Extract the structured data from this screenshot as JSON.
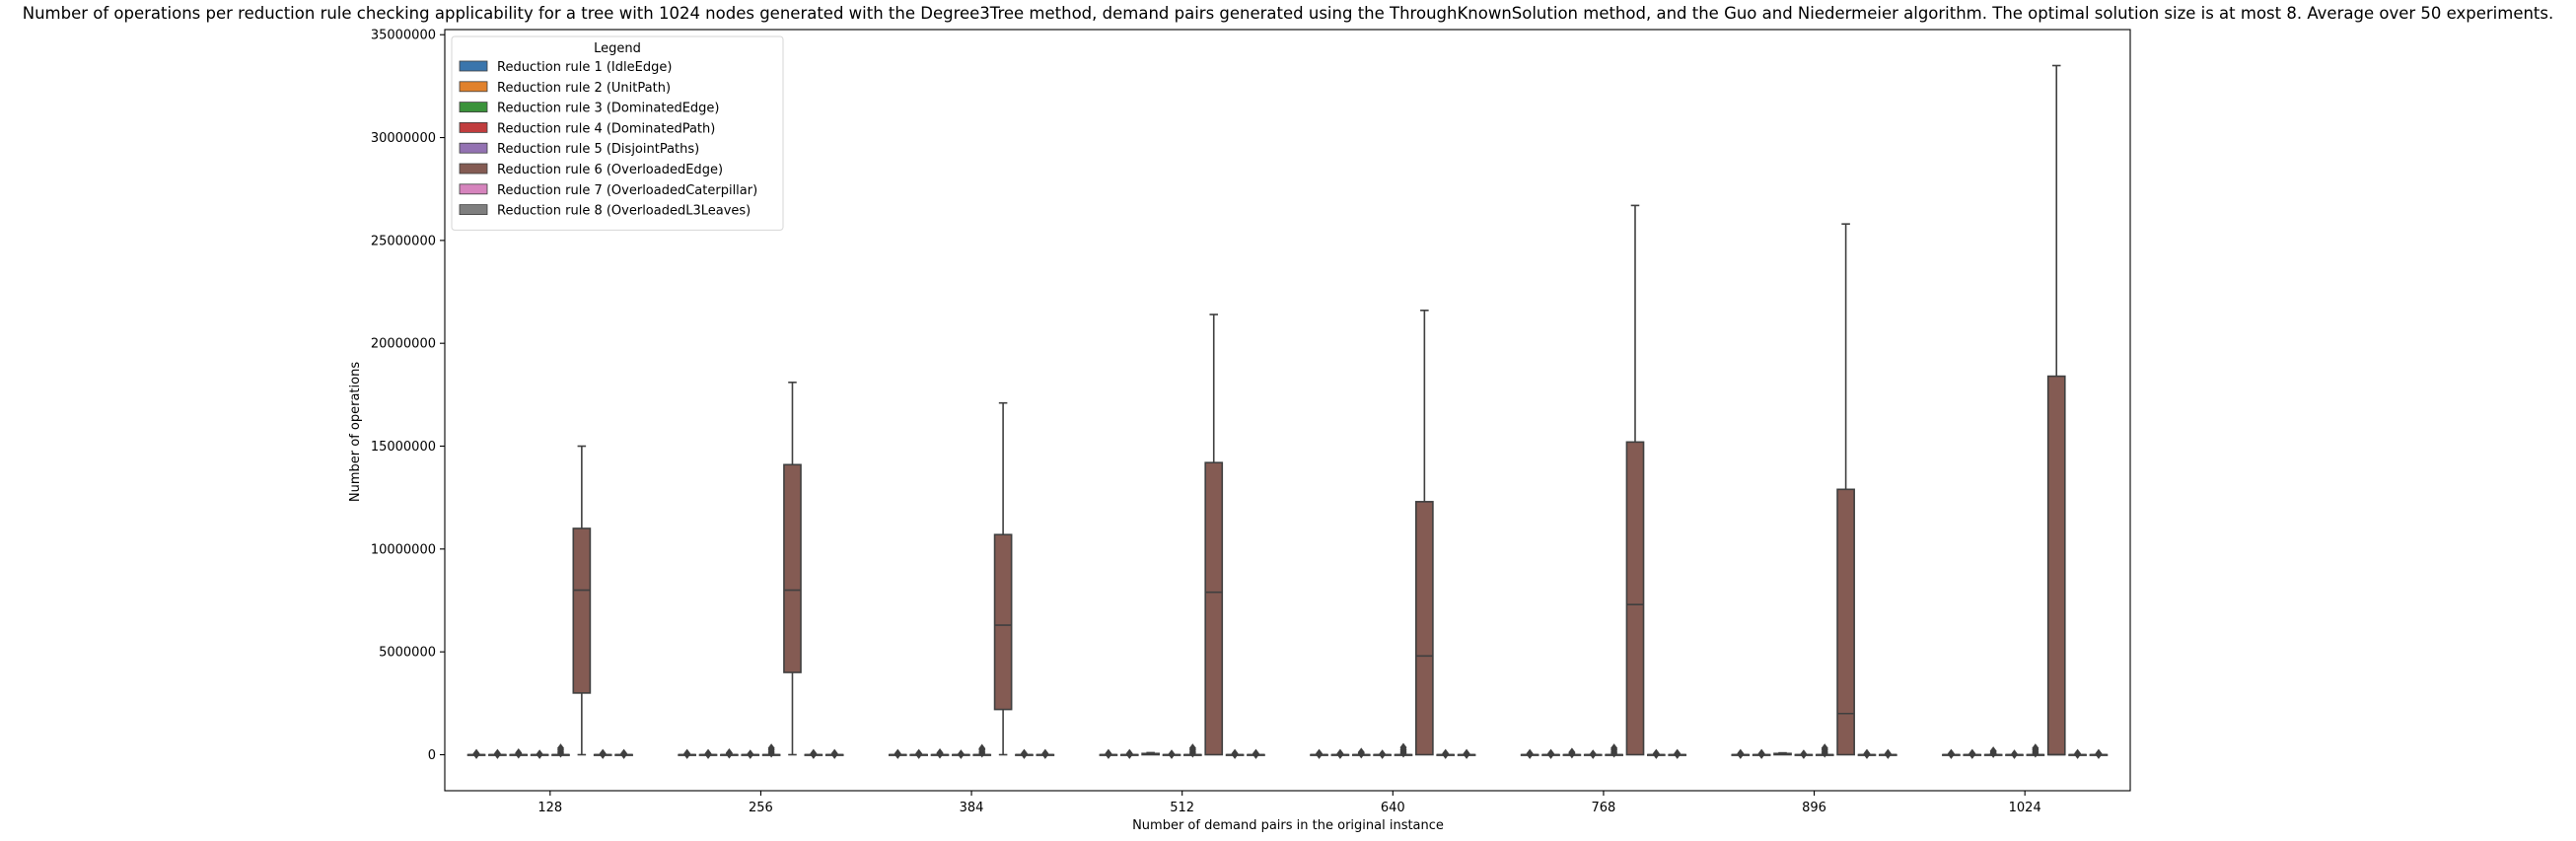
{
  "chart_data": {
    "type": "box",
    "title": "Number of operations per reduction rule checking applicability for a tree with 1024 nodes generated with the Degree3Tree method, demand pairs generated using the ThroughKnownSolution method, and the Guo and Niedermeier algorithm. The optimal solution size is at most 8. Average over 50 experiments.",
    "xlabel": "Number of demand pairs in the original instance",
    "ylabel": "Number of operations",
    "categories": [
      "128",
      "256",
      "384",
      "512",
      "640",
      "768",
      "896",
      "1024"
    ],
    "ylim": [
      -1750000,
      35250000
    ],
    "yticks": [
      0,
      5000000,
      10000000,
      15000000,
      20000000,
      25000000,
      30000000,
      35000000
    ],
    "ytick_labels": [
      "0",
      "5000000",
      "10000000",
      "15000000",
      "20000000",
      "25000000",
      "30000000",
      "35000000"
    ],
    "legend": {
      "title": "Legend",
      "placement": "top-left",
      "entries": [
        {
          "label": "Reduction rule 1 (IdleEdge)",
          "color": "#3a75ac"
        },
        {
          "label": "Reduction rule 2 (UnitPath)",
          "color": "#e1812c"
        },
        {
          "label": "Reduction rule 3 (DominatedEdge)",
          "color": "#3a923a"
        },
        {
          "label": "Reduction rule 4 (DominatedPath)",
          "color": "#c03d3e"
        },
        {
          "label": "Reduction rule 5 (DisjointPaths)",
          "color": "#9372b2"
        },
        {
          "label": "Reduction rule 6 (OverloadedEdge)",
          "color": "#845b53"
        },
        {
          "label": "Reduction rule 7 (OverloadedCaterpillar)",
          "color": "#d684bd"
        },
        {
          "label": "Reduction rule 8 (OverloadedL3Leaves)",
          "color": "#7f7f7f"
        }
      ]
    },
    "series": [
      {
        "name": "Reduction rule 1 (IdleEdge)",
        "boxes": [
          {
            "q1": 0,
            "median": 0,
            "q3": 0,
            "whislo": 0,
            "whishi": 0,
            "fliers": [
              15000,
              30000,
              60000
            ]
          },
          {
            "q1": 0,
            "median": 0,
            "q3": 0,
            "whislo": 0,
            "whishi": 0,
            "fliers": [
              15000,
              30000,
              60000
            ]
          },
          {
            "q1": 0,
            "median": 0,
            "q3": 0,
            "whislo": 0,
            "whishi": 0,
            "fliers": [
              15000,
              30000,
              60000
            ]
          },
          {
            "q1": 0,
            "median": 0,
            "q3": 0,
            "whislo": 0,
            "whishi": 0,
            "fliers": [
              15000,
              30000,
              60000
            ]
          },
          {
            "q1": 0,
            "median": 0,
            "q3": 0,
            "whislo": 0,
            "whishi": 0,
            "fliers": [
              15000,
              30000,
              60000
            ]
          },
          {
            "q1": 0,
            "median": 0,
            "q3": 0,
            "whislo": 0,
            "whishi": 0,
            "fliers": [
              15000,
              30000,
              60000
            ]
          },
          {
            "q1": 0,
            "median": 0,
            "q3": 0,
            "whislo": 0,
            "whishi": 0,
            "fliers": [
              15000,
              30000,
              60000
            ]
          },
          {
            "q1": 0,
            "median": 0,
            "q3": 0,
            "whislo": 0,
            "whishi": 0,
            "fliers": [
              15000,
              30000,
              60000
            ]
          }
        ]
      },
      {
        "name": "Reduction rule 2 (UnitPath)",
        "boxes": [
          {
            "q1": 0,
            "median": 0,
            "q3": 0,
            "whislo": 0,
            "whishi": 0,
            "fliers": [
              15000,
              30000,
              60000
            ]
          },
          {
            "q1": 0,
            "median": 0,
            "q3": 0,
            "whislo": 0,
            "whishi": 0,
            "fliers": [
              15000,
              30000,
              60000
            ]
          },
          {
            "q1": 0,
            "median": 0,
            "q3": 0,
            "whislo": 0,
            "whishi": 0,
            "fliers": [
              15000,
              30000,
              60000
            ]
          },
          {
            "q1": 0,
            "median": 0,
            "q3": 0,
            "whislo": 0,
            "whishi": 0,
            "fliers": [
              15000,
              30000,
              60000
            ]
          },
          {
            "q1": 0,
            "median": 0,
            "q3": 0,
            "whislo": 0,
            "whishi": 0,
            "fliers": [
              15000,
              30000,
              60000
            ]
          },
          {
            "q1": 0,
            "median": 0,
            "q3": 0,
            "whislo": 0,
            "whishi": 0,
            "fliers": [
              15000,
              30000,
              60000
            ]
          },
          {
            "q1": 0,
            "median": 0,
            "q3": 0,
            "whislo": 0,
            "whishi": 0,
            "fliers": [
              15000,
              30000,
              60000
            ]
          },
          {
            "q1": 0,
            "median": 0,
            "q3": 0,
            "whislo": 0,
            "whishi": 0,
            "fliers": [
              15000,
              30000,
              60000
            ]
          }
        ]
      },
      {
        "name": "Reduction rule 3 (DominatedEdge)",
        "boxes": [
          {
            "q1": 0,
            "median": 0,
            "q3": 0,
            "whislo": 0,
            "whishi": 0,
            "fliers": [
              30000,
              60000,
              90000
            ]
          },
          {
            "q1": 0,
            "median": 0,
            "q3": 0,
            "whislo": 0,
            "whishi": 0,
            "fliers": [
              30000,
              60000,
              90000
            ]
          },
          {
            "q1": 0,
            "median": 0,
            "q3": 0,
            "whislo": 0,
            "whishi": 0,
            "fliers": [
              30000,
              60000,
              90000
            ]
          },
          {
            "q1": 0,
            "median": 20000,
            "q3": 60000,
            "whislo": 0,
            "whishi": 100000,
            "fliers": []
          },
          {
            "q1": 0,
            "median": 0,
            "q3": 0,
            "whislo": 0,
            "whishi": 0,
            "fliers": [
              40000,
              80000,
              120000
            ]
          },
          {
            "q1": 0,
            "median": 0,
            "q3": 0,
            "whislo": 0,
            "whishi": 0,
            "fliers": [
              40000,
              80000,
              120000
            ]
          },
          {
            "q1": 0,
            "median": 30000,
            "q3": 60000,
            "whislo": 0,
            "whishi": 90000,
            "fliers": []
          },
          {
            "q1": 0,
            "median": 0,
            "q3": 0,
            "whislo": 0,
            "whishi": 0,
            "fliers": [
              60000,
              120000,
              180000
            ]
          }
        ]
      },
      {
        "name": "Reduction rule 4 (DominatedPath)",
        "boxes": [
          {
            "q1": 0,
            "median": 0,
            "q3": 0,
            "whislo": 0,
            "whishi": 0,
            "fliers": [
              15000,
              30000
            ]
          },
          {
            "q1": 0,
            "median": 0,
            "q3": 0,
            "whislo": 0,
            "whishi": 0,
            "fliers": [
              15000,
              30000
            ]
          },
          {
            "q1": 0,
            "median": 0,
            "q3": 0,
            "whislo": 0,
            "whishi": 0,
            "fliers": [
              15000,
              30000
            ]
          },
          {
            "q1": 0,
            "median": 0,
            "q3": 0,
            "whislo": 0,
            "whishi": 0,
            "fliers": [
              15000,
              30000
            ]
          },
          {
            "q1": 0,
            "median": 0,
            "q3": 0,
            "whislo": 0,
            "whishi": 0,
            "fliers": [
              15000,
              30000
            ]
          },
          {
            "q1": 0,
            "median": 0,
            "q3": 0,
            "whislo": 0,
            "whishi": 0,
            "fliers": [
              15000,
              30000
            ]
          },
          {
            "q1": 0,
            "median": 0,
            "q3": 0,
            "whislo": 0,
            "whishi": 0,
            "fliers": [
              15000,
              30000
            ]
          },
          {
            "q1": 0,
            "median": 0,
            "q3": 0,
            "whislo": 0,
            "whishi": 0,
            "fliers": [
              15000,
              30000
            ]
          }
        ]
      },
      {
        "name": "Reduction rule 5 (DisjointPaths)",
        "boxes": [
          {
            "q1": 0,
            "median": 0,
            "q3": 0,
            "whislo": 0,
            "whishi": 0,
            "fliers": [
              80000,
              160000,
              250000,
              320000
            ]
          },
          {
            "q1": 0,
            "median": 0,
            "q3": 0,
            "whislo": 0,
            "whishi": 0,
            "fliers": [
              80000,
              160000,
              250000,
              320000
            ]
          },
          {
            "q1": 0,
            "median": 0,
            "q3": 0,
            "whislo": 0,
            "whishi": 0,
            "fliers": [
              80000,
              160000,
              250000,
              300000
            ]
          },
          {
            "q1": 0,
            "median": 0,
            "q3": 0,
            "whislo": 0,
            "whishi": 0,
            "fliers": [
              80000,
              160000,
              250000,
              320000
            ]
          },
          {
            "q1": 0,
            "median": 0,
            "q3": 0,
            "whislo": 0,
            "whishi": 0,
            "fliers": [
              80000,
              160000,
              250000,
              350000
            ]
          },
          {
            "q1": 0,
            "median": 0,
            "q3": 0,
            "whislo": 0,
            "whishi": 0,
            "fliers": [
              80000,
              160000,
              250000,
              320000
            ]
          },
          {
            "q1": 0,
            "median": 0,
            "q3": 0,
            "whislo": 0,
            "whishi": 0,
            "fliers": [
              80000,
              160000,
              250000,
              320000
            ]
          },
          {
            "q1": 0,
            "median": 0,
            "q3": 0,
            "whislo": 0,
            "whishi": 0,
            "fliers": [
              80000,
              160000,
              250000,
              320000
            ]
          }
        ]
      },
      {
        "name": "Reduction rule 6 (OverloadedEdge)",
        "boxes": [
          {
            "q1": 3000000,
            "median": 8000000,
            "q3": 11000000,
            "whislo": 0,
            "whishi": 15000000,
            "fliers": []
          },
          {
            "q1": 4000000,
            "median": 8000000,
            "q3": 14100000,
            "whislo": 0,
            "whishi": 18100000,
            "fliers": []
          },
          {
            "q1": 2200000,
            "median": 6300000,
            "q3": 10700000,
            "whislo": 0,
            "whishi": 17100000,
            "fliers": []
          },
          {
            "q1": 0,
            "median": 7900000,
            "q3": 14200000,
            "whislo": 0,
            "whishi": 21400000,
            "fliers": []
          },
          {
            "q1": 0,
            "median": 4800000,
            "q3": 12300000,
            "whislo": 0,
            "whishi": 21600000,
            "fliers": []
          },
          {
            "q1": 0,
            "median": 7300000,
            "q3": 15200000,
            "whislo": 0,
            "whishi": 26700000,
            "fliers": []
          },
          {
            "q1": 0,
            "median": 2000000,
            "q3": 12900000,
            "whislo": 0,
            "whishi": 25800000,
            "fliers": []
          },
          {
            "q1": 0,
            "median": 0,
            "q3": 18400000,
            "whislo": 0,
            "whishi": 33500000,
            "fliers": []
          }
        ]
      },
      {
        "name": "Reduction rule 7 (OverloadedCaterpillar)",
        "boxes": [
          {
            "q1": 0,
            "median": 0,
            "q3": 0,
            "whislo": 0,
            "whishi": 0,
            "fliers": [
              15000,
              30000,
              60000
            ]
          },
          {
            "q1": 0,
            "median": 0,
            "q3": 0,
            "whislo": 0,
            "whishi": 0,
            "fliers": [
              15000,
              30000,
              60000
            ]
          },
          {
            "q1": 0,
            "median": 0,
            "q3": 0,
            "whislo": 0,
            "whishi": 0,
            "fliers": [
              15000,
              30000,
              60000
            ]
          },
          {
            "q1": 0,
            "median": 0,
            "q3": 0,
            "whislo": 0,
            "whishi": 0,
            "fliers": [
              15000,
              30000,
              60000
            ]
          },
          {
            "q1": 0,
            "median": 0,
            "q3": 0,
            "whislo": 0,
            "whishi": 0,
            "fliers": [
              15000,
              30000,
              60000
            ]
          },
          {
            "q1": 0,
            "median": 0,
            "q3": 0,
            "whislo": 0,
            "whishi": 0,
            "fliers": [
              15000,
              30000,
              60000
            ]
          },
          {
            "q1": 0,
            "median": 0,
            "q3": 0,
            "whislo": 0,
            "whishi": 0,
            "fliers": [
              15000,
              30000,
              60000
            ]
          },
          {
            "q1": 0,
            "median": 0,
            "q3": 0,
            "whislo": 0,
            "whishi": 0,
            "fliers": [
              15000,
              30000,
              60000
            ]
          }
        ]
      },
      {
        "name": "Reduction rule 8 (OverloadedL3Leaves)",
        "boxes": [
          {
            "q1": 0,
            "median": 0,
            "q3": 0,
            "whislo": 0,
            "whishi": 0,
            "fliers": [
              15000,
              30000,
              60000
            ]
          },
          {
            "q1": 0,
            "median": 0,
            "q3": 0,
            "whislo": 0,
            "whishi": 0,
            "fliers": [
              15000,
              30000,
              60000
            ]
          },
          {
            "q1": 0,
            "median": 0,
            "q3": 0,
            "whislo": 0,
            "whishi": 0,
            "fliers": [
              15000,
              30000,
              60000
            ]
          },
          {
            "q1": 0,
            "median": 0,
            "q3": 0,
            "whislo": 0,
            "whishi": 0,
            "fliers": [
              15000,
              30000,
              60000
            ]
          },
          {
            "q1": 0,
            "median": 0,
            "q3": 0,
            "whislo": 0,
            "whishi": 0,
            "fliers": [
              15000,
              30000,
              60000
            ]
          },
          {
            "q1": 0,
            "median": 0,
            "q3": 0,
            "whislo": 0,
            "whishi": 0,
            "fliers": [
              15000,
              30000,
              60000
            ]
          },
          {
            "q1": 0,
            "median": 0,
            "q3": 0,
            "whislo": 0,
            "whishi": 0,
            "fliers": [
              15000,
              30000,
              60000
            ]
          },
          {
            "q1": 0,
            "median": 0,
            "q3": 0,
            "whislo": 0,
            "whishi": 0,
            "fliers": [
              15000,
              30000,
              60000
            ]
          }
        ]
      }
    ]
  }
}
